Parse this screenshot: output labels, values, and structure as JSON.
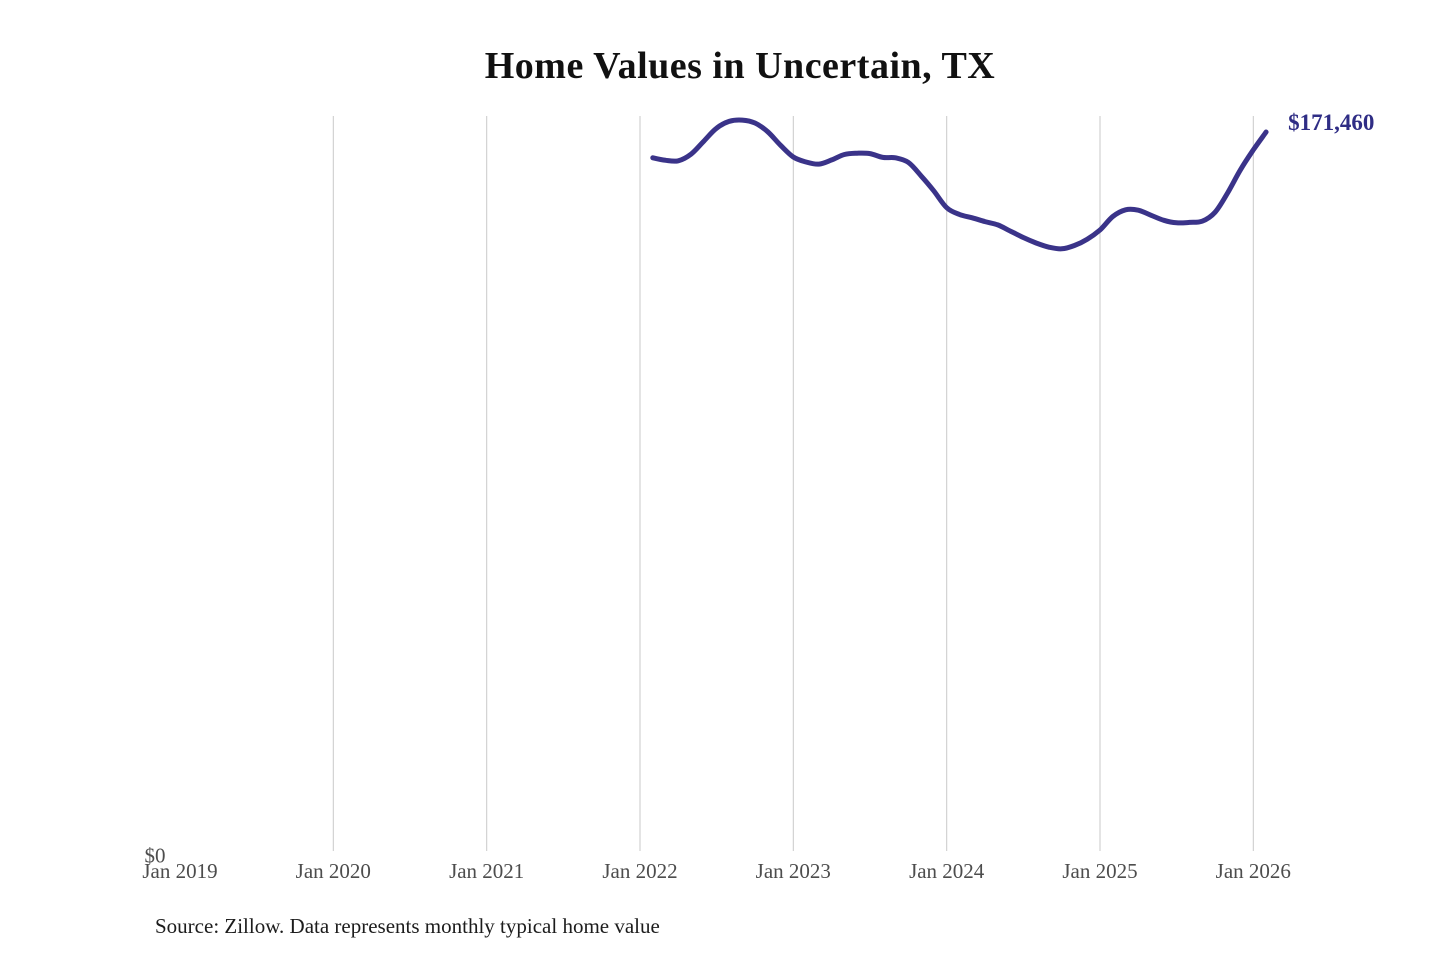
{
  "page": {
    "title": "Home Values in Uncertain, TX",
    "source_note": "Source: Zillow. Data represents monthly typical home value"
  },
  "chart_data": {
    "type": "line",
    "title": "Home Values in Uncertain, TX",
    "xlabel": "",
    "ylabel": "",
    "y_zero_label": "$0",
    "end_value_label": "$171,460",
    "end_value": 171460,
    "ylim": [
      0,
      175800
    ],
    "grid": "vertical-gridlines-only",
    "legend": "none",
    "x_tick_labels": [
      "Jan 2019",
      "Jan 2020",
      "Jan 2021",
      "Jan 2022",
      "Jan 2023",
      "Jan 2024",
      "Jan 2025",
      "Jan 2026"
    ],
    "series": [
      {
        "name": "Monthly typical home value",
        "months": [
          "Feb 2022",
          "Mar 2022",
          "Apr 2022",
          "May 2022",
          "Jun 2022",
          "Jul 2022",
          "Aug 2022",
          "Sep 2022",
          "Oct 2022",
          "Nov 2022",
          "Dec 2022",
          "Jan 2023",
          "Feb 2023",
          "Mar 2023",
          "Apr 2023",
          "May 2023",
          "Jun 2023",
          "Jul 2023",
          "Aug 2023",
          "Sep 2023",
          "Oct 2023",
          "Nov 2023",
          "Dec 2023",
          "Jan 2024",
          "Feb 2024",
          "Mar 2024",
          "Apr 2024",
          "May 2024",
          "Jun 2024",
          "Jul 2024",
          "Aug 2024",
          "Sep 2024",
          "Oct 2024",
          "Nov 2024",
          "Dec 2024",
          "Jan 2025",
          "Feb 2025",
          "Mar 2025",
          "Apr 2025",
          "May 2025",
          "Jun 2025",
          "Jul 2025",
          "Aug 2025",
          "Sep 2025",
          "Oct 2025",
          "Nov 2025",
          "Dec 2025",
          "Jan 2026",
          "Feb 2026"
        ],
        "values": [
          165300,
          164700,
          164600,
          166200,
          169300,
          172400,
          174000,
          174300,
          173600,
          171500,
          168300,
          165500,
          164300,
          163800,
          164800,
          166100,
          166400,
          166300,
          165400,
          165300,
          164200,
          161000,
          157400,
          153400,
          151800,
          151000,
          150100,
          149300,
          147800,
          146300,
          145000,
          144000,
          143600,
          144400,
          145900,
          148100,
          151300,
          152900,
          152800,
          151600,
          150400,
          149800,
          149900,
          150200,
          152300,
          157000,
          162500,
          167200,
          171460
        ]
      }
    ]
  },
  "colors": {
    "line": "#3a3389",
    "end_label": "#2f2d85",
    "gridline": "#c9c9c9",
    "axis_text": "#4d4d4d",
    "title_text": "#111111",
    "source_text": "#1c1c1c",
    "background": "#ffffff"
  }
}
